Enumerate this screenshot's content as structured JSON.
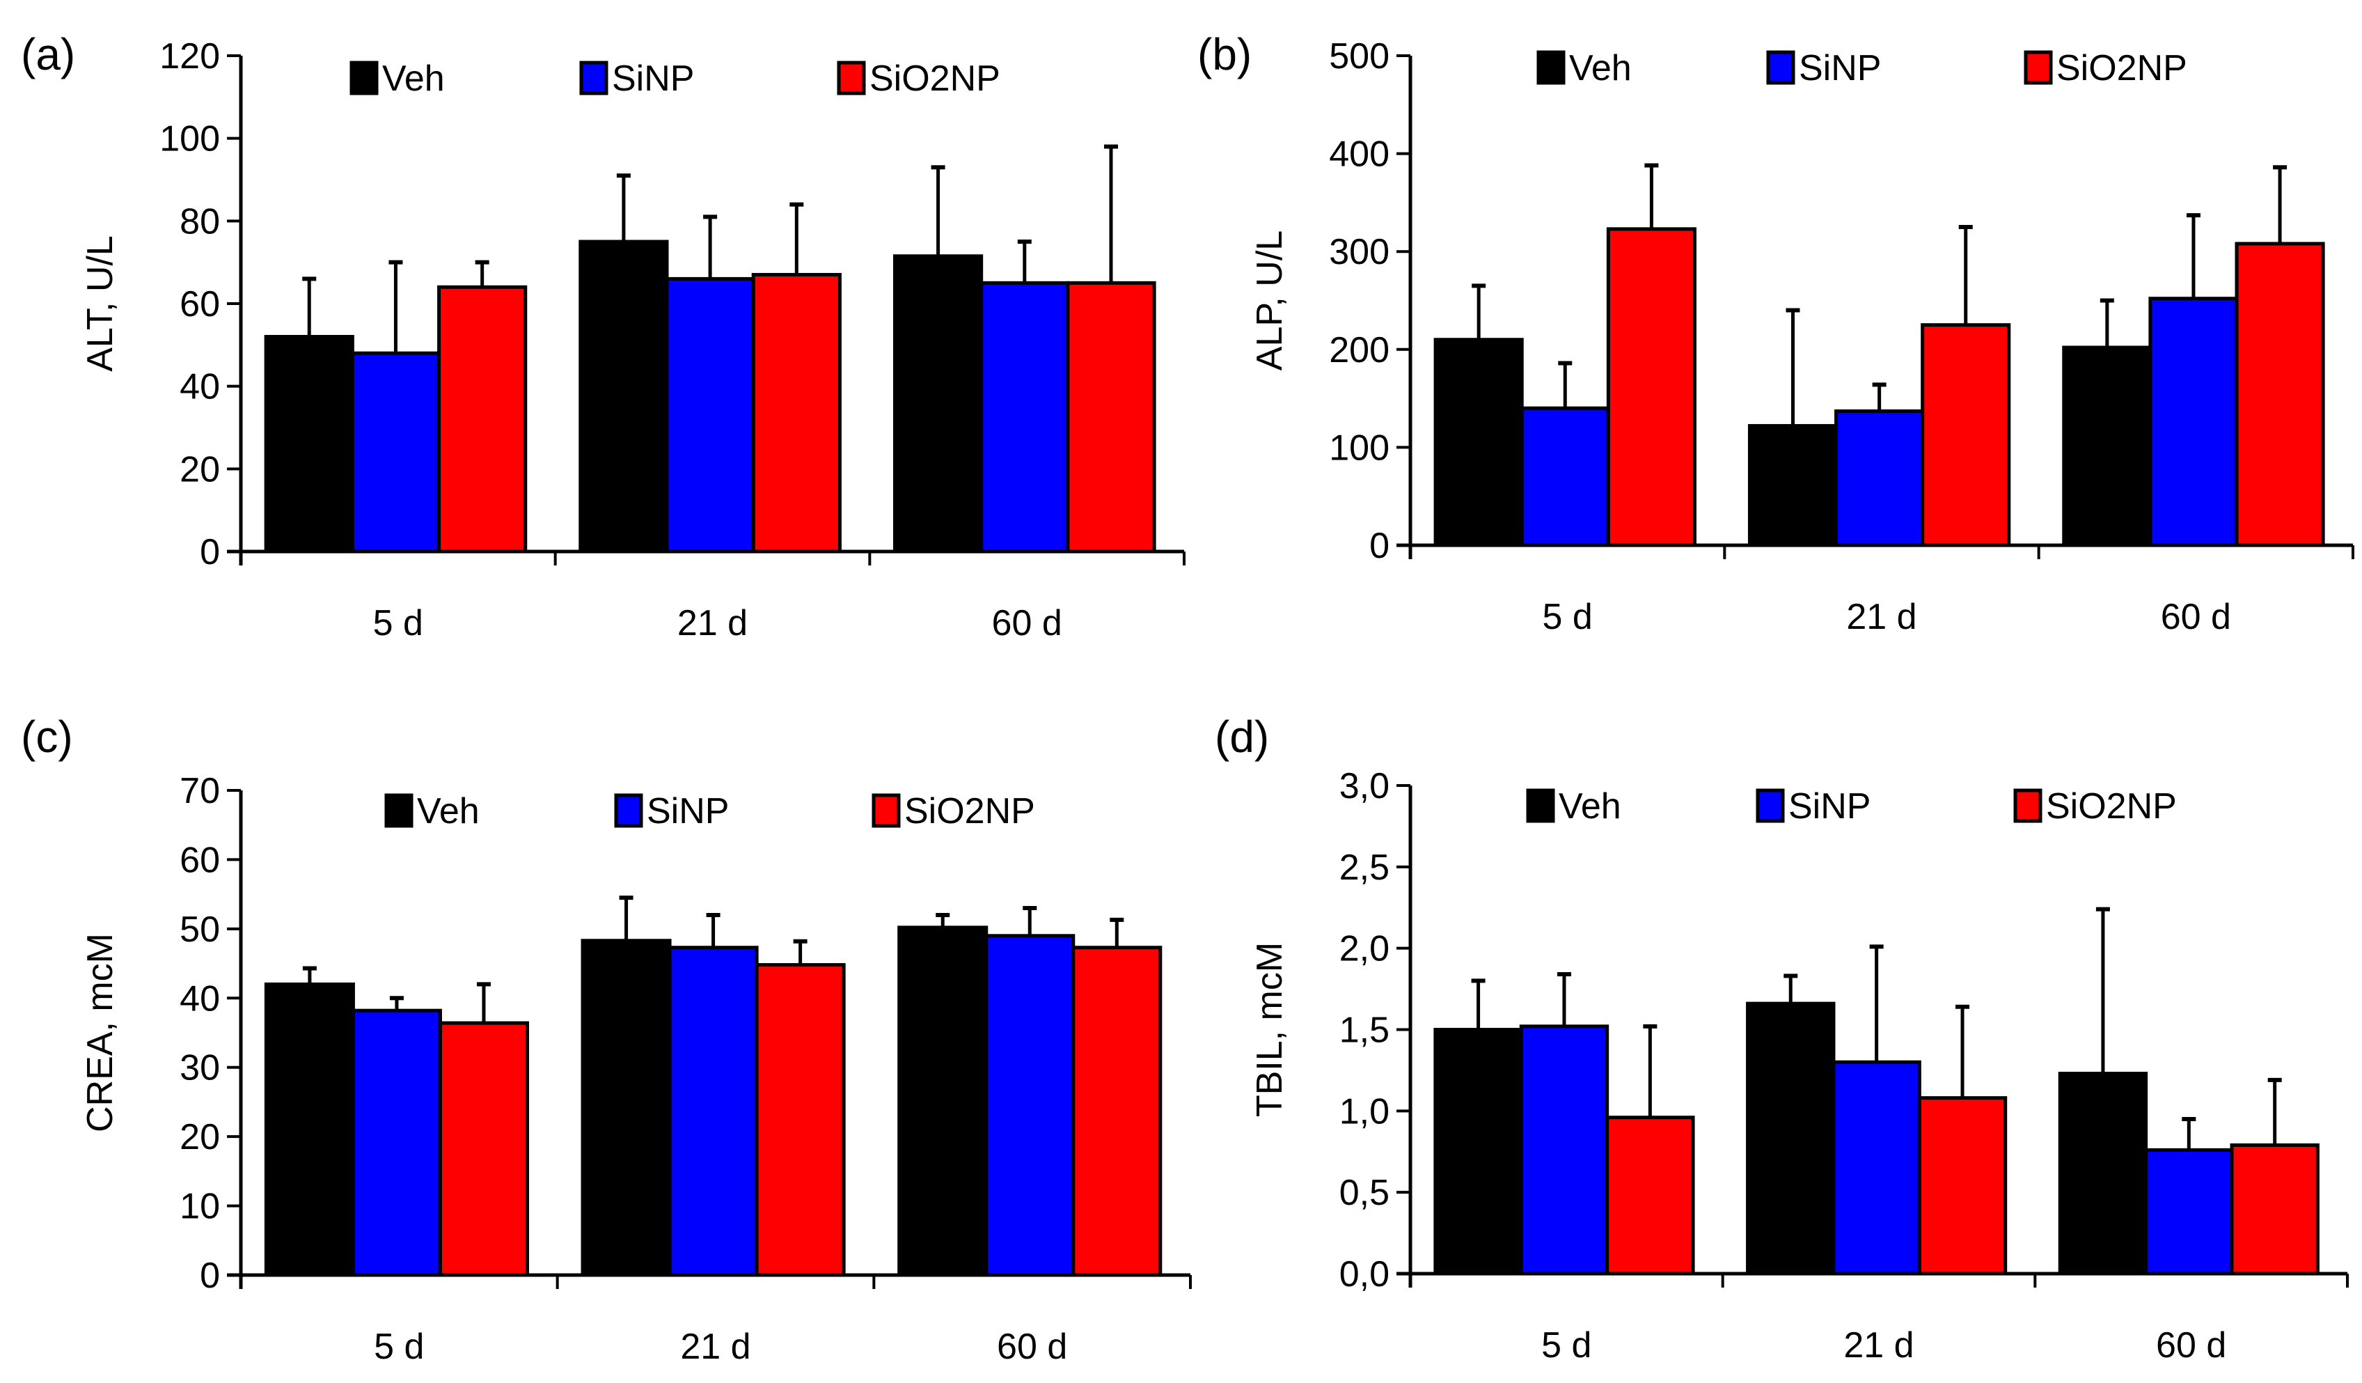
{
  "legend": [
    "Veh",
    "SiNP",
    "SiO2NP"
  ],
  "colors": {
    "Veh": "#000000",
    "SiNP": "#0000ff",
    "SiO2NP": "#ff0000"
  },
  "chart_data": [
    {
      "type": "bar",
      "panel_label": "(a)",
      "ylabel": "ALT, U/L",
      "categories": [
        "5 d",
        "21 d",
        "60 d"
      ],
      "ylim": [
        0,
        120
      ],
      "yticks": [
        0,
        20,
        40,
        60,
        80,
        100,
        120
      ],
      "ytick_labels": [
        "0",
        "20",
        "40",
        "60",
        "80",
        "100",
        "120"
      ],
      "legend_position": "top",
      "series": [
        {
          "name": "Veh",
          "values": [
            52,
            75,
            71.5
          ],
          "error_top": [
            66,
            91,
            93
          ]
        },
        {
          "name": "SiNP",
          "values": [
            48,
            66,
            65
          ],
          "error_top": [
            70,
            81,
            75
          ]
        },
        {
          "name": "SiO2NP",
          "values": [
            64,
            67,
            65
          ],
          "error_top": [
            70,
            84,
            98
          ]
        }
      ]
    },
    {
      "type": "bar",
      "panel_label": "(b)",
      "ylabel": "ALP, U/L",
      "categories": [
        "5 d",
        "21 d",
        "60 d"
      ],
      "ylim": [
        0,
        500
      ],
      "yticks": [
        0,
        100,
        200,
        300,
        400,
        500
      ],
      "ytick_labels": [
        "0",
        "100",
        "200",
        "300",
        "400",
        "500"
      ],
      "legend_position": "top",
      "series": [
        {
          "name": "Veh",
          "values": [
            210,
            122,
            202
          ],
          "error_top": [
            265,
            240,
            250
          ]
        },
        {
          "name": "SiNP",
          "values": [
            140,
            137,
            252
          ],
          "error_top": [
            186,
            164,
            337
          ]
        },
        {
          "name": "SiO2NP",
          "values": [
            323,
            225,
            308
          ],
          "error_top": [
            388,
            325,
            386
          ]
        }
      ]
    },
    {
      "type": "bar",
      "panel_label": "(c)",
      "ylabel": "CREA, mcM",
      "categories": [
        "5 d",
        "21 d",
        "60 d"
      ],
      "ylim": [
        0,
        70
      ],
      "yticks": [
        0,
        10,
        20,
        30,
        40,
        50,
        60,
        70
      ],
      "ytick_labels": [
        "0",
        "10",
        "20",
        "30",
        "40",
        "50",
        "60",
        "70"
      ],
      "legend_position": "top",
      "series": [
        {
          "name": "Veh",
          "values": [
            42,
            48.3,
            50.2
          ],
          "error_top": [
            44.3,
            54.5,
            52
          ]
        },
        {
          "name": "SiNP",
          "values": [
            38.2,
            47.3,
            49
          ],
          "error_top": [
            40,
            52,
            53
          ]
        },
        {
          "name": "SiO2NP",
          "values": [
            36.4,
            44.8,
            47.3
          ],
          "error_top": [
            42,
            48.2,
            51.3
          ]
        }
      ]
    },
    {
      "type": "bar",
      "panel_label": "(d)",
      "ylabel": "TBIL, mcM",
      "categories": [
        "5 d",
        "21 d",
        "60 d"
      ],
      "ylim": [
        0,
        3.0
      ],
      "yticks": [
        0,
        0.5,
        1.0,
        1.5,
        2.0,
        2.5,
        3.0
      ],
      "ytick_labels": [
        "0,0",
        "0,5",
        "1,0",
        "1,5",
        "2,0",
        "2,5",
        "3,0"
      ],
      "legend_position": "top",
      "series": [
        {
          "name": "Veh",
          "values": [
            1.5,
            1.66,
            1.23
          ],
          "error_top": [
            1.8,
            1.83,
            2.24
          ]
        },
        {
          "name": "SiNP",
          "values": [
            1.52,
            1.3,
            0.76
          ],
          "error_top": [
            1.84,
            2.01,
            0.95
          ]
        },
        {
          "name": "SiO2NP",
          "values": [
            0.96,
            1.08,
            0.79
          ],
          "error_top": [
            1.52,
            1.64,
            1.19
          ]
        }
      ]
    }
  ]
}
